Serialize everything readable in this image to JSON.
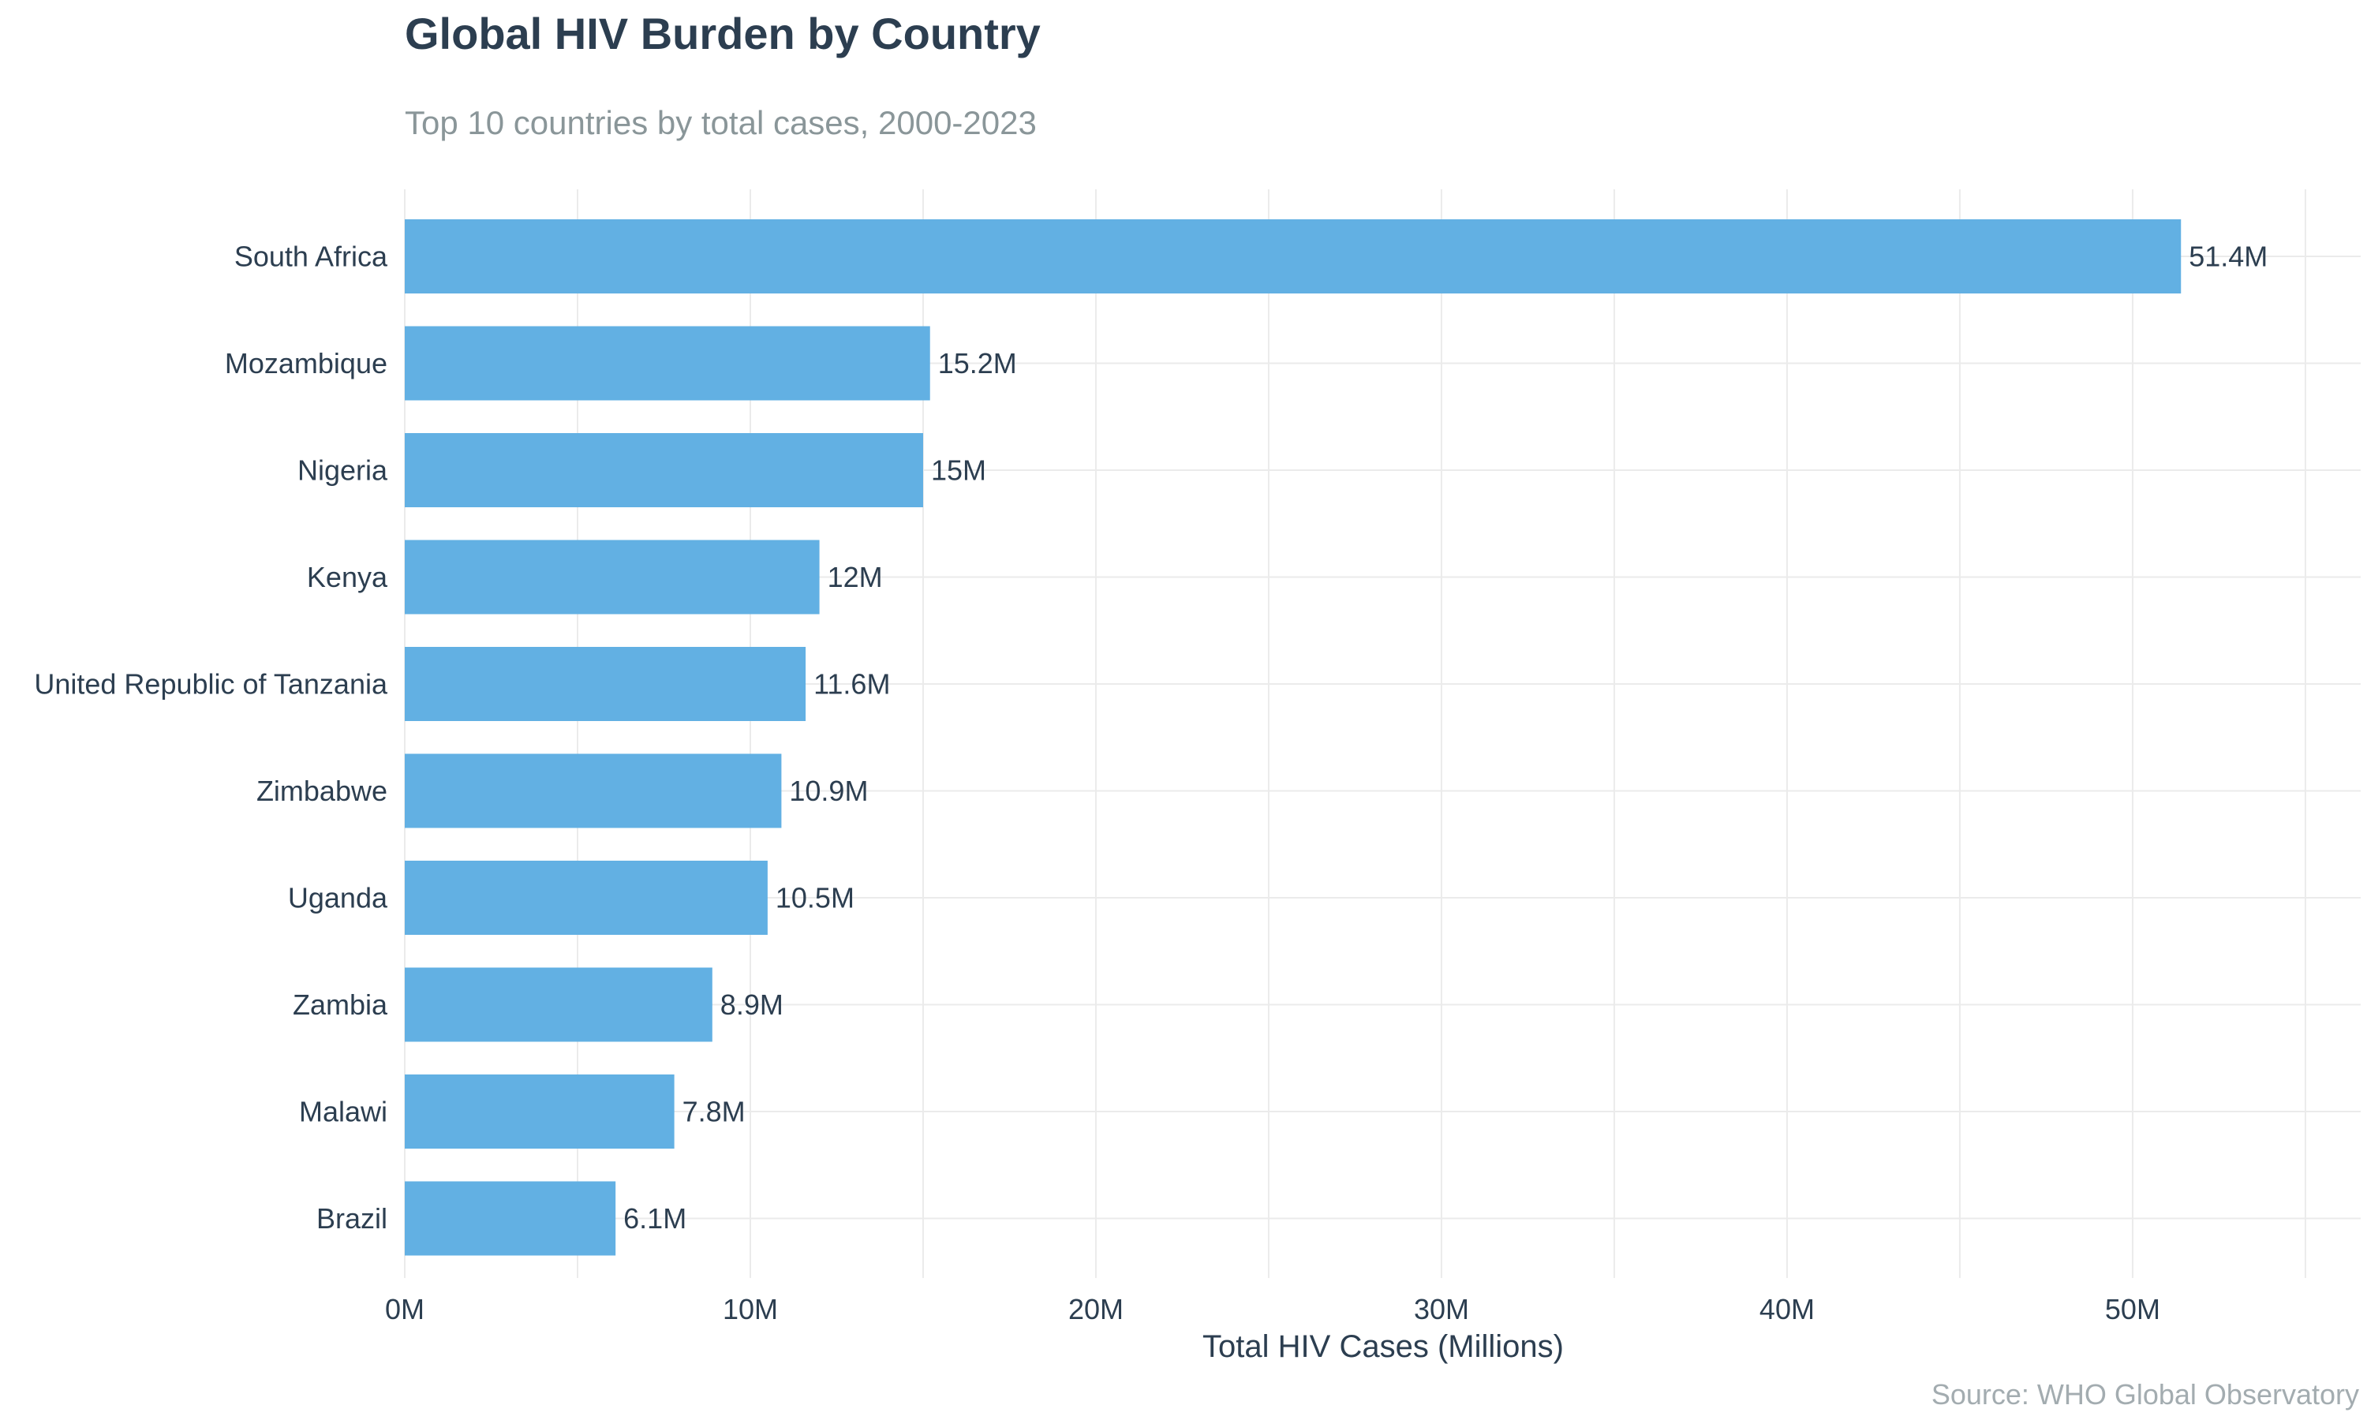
{
  "chart_data": {
    "type": "bar",
    "orientation": "horizontal",
    "title": "Global HIV Burden by Country",
    "subtitle": "Top 10 countries by total cases, 2000-2023",
    "xlabel": "Total HIV Cases (Millions)",
    "ylabel": "",
    "caption": "Source: WHO Global Observatory",
    "categories": [
      "South Africa",
      "Mozambique",
      "Nigeria",
      "Kenya",
      "United Republic of Tanzania",
      "Zimbabwe",
      "Uganda",
      "Zambia",
      "Malawi",
      "Brazil"
    ],
    "values": [
      51.4,
      15.2,
      15.0,
      12.0,
      11.6,
      10.9,
      10.5,
      8.9,
      7.8,
      6.1
    ],
    "value_labels": [
      "51.4M",
      "15.2M",
      "15M",
      "12M",
      "11.6M",
      "10.9M",
      "10.5M",
      "8.9M",
      "7.8M",
      "6.1M"
    ],
    "xlim": [
      0,
      56.6
    ],
    "xticks": [
      0,
      10,
      20,
      30,
      40,
      50
    ],
    "xtick_labels": [
      "0M",
      "10M",
      "20M",
      "30M",
      "40M",
      "50M"
    ],
    "grid": true,
    "legend": "none",
    "colors": {
      "bar": "#5dade2",
      "text": "#2c3e50",
      "subtitle": "#8a9699",
      "caption": "#a3acb0",
      "grid": "#ebebeb"
    }
  }
}
